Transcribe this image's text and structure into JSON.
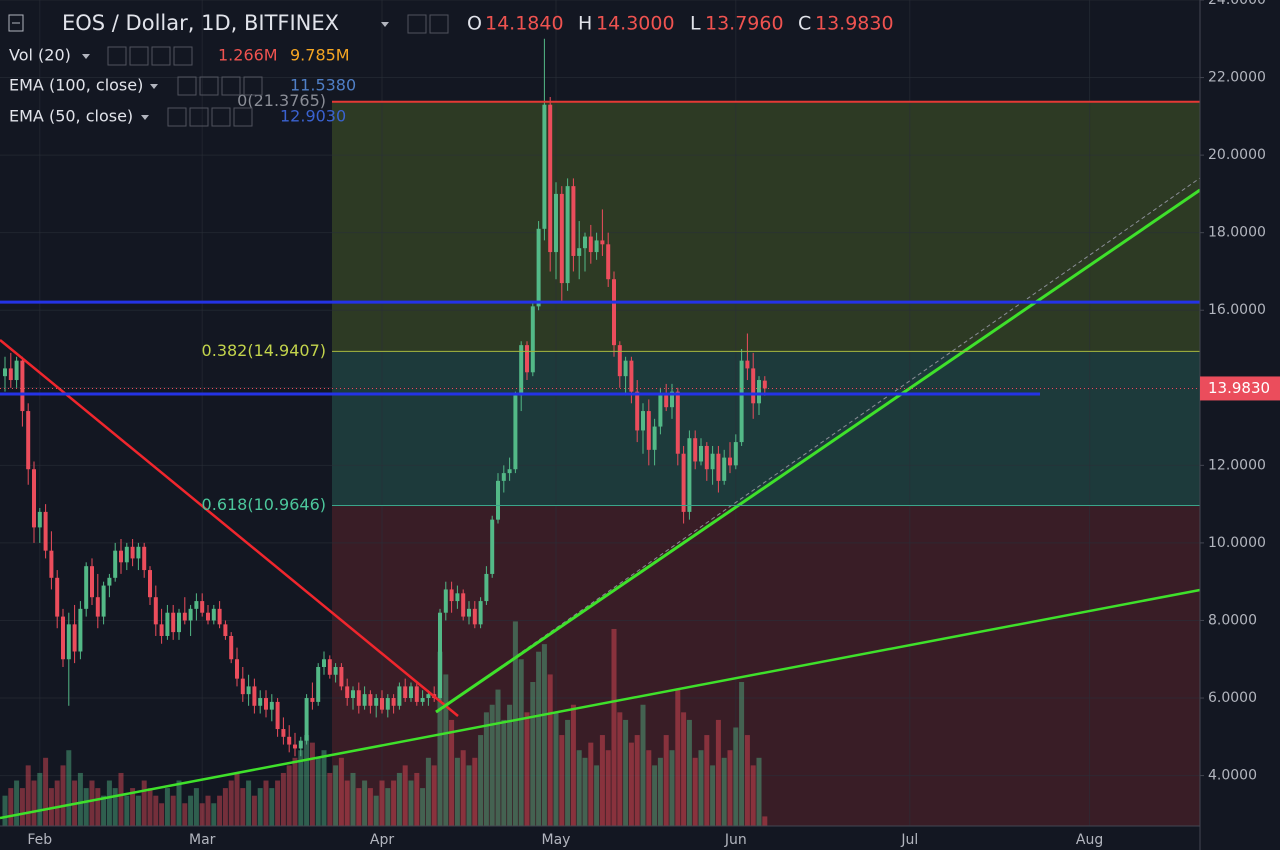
{
  "chart_data": {
    "type": "candlestick",
    "title": "EOS / Dollar, 1D, BITFINEX",
    "ohlc_legend": [
      {
        "name": "O",
        "value": 14.184,
        "label": "14.1840"
      },
      {
        "name": "H",
        "value": 14.3,
        "label": "14.3000"
      },
      {
        "name": "L",
        "value": 13.796,
        "label": "13.7960"
      },
      {
        "name": "C",
        "value": 13.983,
        "label": "13.9830"
      }
    ],
    "legend": [
      {
        "name": "Vol (20)",
        "values": [
          {
            "value": 1.266,
            "label": "1.266M",
            "color": "#ef5350"
          },
          {
            "value": 9.785,
            "label": "9.785M",
            "color": "#f5a623"
          }
        ]
      },
      {
        "name": "EMA (100, close)",
        "values": [
          {
            "value": 11.538,
            "label": "11.5380",
            "color": "#4f7fc6"
          }
        ]
      },
      {
        "name": "EMA (50, close)",
        "values": [
          {
            "value": 12.903,
            "label": "12.9030",
            "color": "#3a62d0"
          }
        ]
      }
    ],
    "categories": [
      null,
      null,
      null,
      null,
      null,
      null,
      "Feb",
      null,
      null,
      null,
      null,
      null,
      null,
      null,
      null,
      null,
      null,
      null,
      null,
      null,
      null,
      null,
      null,
      null,
      null,
      null,
      null,
      null,
      null,
      null,
      null,
      null,
      null,
      null,
      "Mar",
      null,
      null,
      null,
      null,
      null,
      null,
      null,
      null,
      null,
      null,
      null,
      null,
      null,
      null,
      null,
      null,
      null,
      null,
      null,
      null,
      null,
      null,
      null,
      null,
      null,
      null,
      null,
      null,
      null,
      null,
      "Apr",
      null,
      null,
      null,
      null,
      null,
      null,
      null,
      null,
      null,
      null,
      null,
      null,
      null,
      null,
      null,
      null,
      null,
      null,
      null,
      null,
      null,
      null,
      null,
      null,
      null,
      null,
      null,
      null,
      null,
      "May",
      null,
      null,
      null,
      null,
      null,
      null,
      null,
      null,
      null,
      null,
      null,
      null,
      null,
      null,
      null,
      null,
      null,
      null,
      null,
      null,
      null,
      null,
      null,
      null,
      null,
      null,
      null,
      null,
      null,
      null,
      "Jun",
      null,
      null,
      null,
      null,
      null,
      null,
      null,
      null,
      null,
      null,
      null,
      null,
      null,
      null,
      null,
      null,
      null,
      null,
      null,
      null,
      null,
      null,
      null,
      null,
      null,
      null,
      null,
      null,
      null,
      "Jul",
      null,
      null,
      null,
      null,
      null,
      null,
      null,
      null,
      null,
      null,
      null,
      null,
      null,
      null,
      null,
      null,
      null,
      null,
      null,
      null,
      null,
      null,
      null,
      null,
      null,
      null,
      null,
      null,
      null,
      null,
      "Aug",
      null,
      null,
      null,
      null,
      null,
      null,
      null,
      null,
      null,
      null,
      null,
      null,
      null,
      null,
      null,
      null,
      null,
      null
    ],
    "open": [
      14.3,
      14.5,
      14.2,
      14.7,
      13.4,
      11.9,
      10.4,
      10.8,
      9.8,
      9.1,
      8.1,
      7.0,
      7.9,
      7.2,
      8.3,
      9.4,
      8.6,
      8.1,
      8.9,
      9.1,
      9.8,
      9.5,
      9.9,
      9.6,
      9.9,
      9.3,
      8.6,
      7.9,
      7.6,
      8.2,
      7.7,
      8.2,
      8.0,
      8.3,
      8.5,
      8.2,
      8.0,
      8.3,
      7.9,
      7.6,
      7.0,
      6.5,
      6.1,
      6.3,
      5.8,
      6.0,
      5.7,
      5.9,
      5.2,
      5.0,
      4.8,
      4.7,
      4.9,
      6.0,
      5.9,
      6.8,
      7.0,
      6.6,
      6.8,
      6.3,
      6.0,
      6.2,
      5.8,
      6.1,
      5.8,
      6.0,
      5.7,
      6.0,
      5.8,
      6.3,
      6.0,
      6.3,
      5.9,
      6.0,
      6.1,
      6.0,
      8.2,
      8.8,
      8.5,
      8.7,
      8.1,
      8.3,
      7.9,
      8.5,
      9.2,
      10.6,
      11.6,
      11.8,
      11.9,
      13.8,
      15.1,
      14.4,
      16.1,
      18.1,
      21.3,
      17.5,
      19.0,
      16.7,
      19.2,
      17.4,
      17.6,
      17.9,
      17.5,
      17.8,
      17.7,
      16.8,
      15.1,
      14.3,
      14.7,
      13.9,
      12.9,
      13.4,
      12.4,
      13.0,
      13.8,
      13.5,
      13.9,
      12.3,
      10.8,
      12.7,
      12.1,
      12.5,
      11.9,
      12.3,
      11.6,
      12.2,
      12.0,
      12.6,
      14.7,
      14.5,
      13.6,
      14.184,
      null,
      null,
      null,
      null,
      null,
      null,
      null,
      null,
      null,
      null,
      null,
      null,
      null,
      null,
      null,
      null,
      null,
      null,
      null,
      null,
      null,
      null,
      null,
      null,
      null,
      null,
      null,
      null,
      null,
      null,
      null,
      null,
      null,
      null,
      null,
      null,
      null,
      null,
      null,
      null,
      null,
      null,
      null,
      null,
      null,
      null,
      null,
      null,
      null,
      null,
      null,
      null,
      null,
      null,
      null,
      null,
      null,
      null,
      null,
      null,
      null,
      null,
      null,
      null,
      null,
      null,
      null,
      null,
      null,
      null,
      null,
      null,
      null,
      null
    ],
    "high": [
      14.8,
      14.9,
      14.8,
      14.8,
      13.6,
      12.1,
      10.9,
      11.0,
      10.3,
      9.3,
      8.3,
      8.2,
      8.4,
      8.5,
      9.5,
      9.6,
      9.2,
      9.0,
      9.2,
      10.0,
      10.1,
      10.0,
      10.1,
      10.0,
      10.0,
      9.4,
      8.9,
      8.3,
      8.4,
      8.4,
      8.3,
      8.6,
      8.4,
      8.7,
      8.7,
      8.4,
      8.4,
      8.5,
      8.0,
      7.7,
      7.3,
      6.8,
      6.6,
      6.5,
      6.2,
      6.2,
      6.1,
      6.0,
      5.5,
      5.3,
      5.1,
      5.0,
      6.1,
      6.4,
      6.9,
      7.2,
      7.1,
      6.9,
      6.9,
      6.5,
      6.3,
      6.4,
      6.3,
      6.2,
      6.1,
      6.2,
      6.1,
      6.1,
      6.4,
      6.5,
      6.4,
      6.4,
      6.2,
      6.2,
      6.3,
      8.3,
      9.0,
      9.0,
      8.9,
      8.8,
      8.5,
      8.5,
      8.6,
      9.4,
      10.7,
      11.8,
      12.0,
      12.2,
      13.9,
      15.2,
      15.2,
      16.2,
      18.3,
      23.0,
      21.5,
      19.3,
      19.2,
      19.4,
      19.4,
      18.3,
      18.0,
      18.2,
      18.0,
      18.6,
      18.0,
      17.0,
      15.2,
      14.8,
      14.8,
      14.2,
      13.6,
      13.7,
      13.2,
      14.0,
      14.1,
      14.1,
      14.0,
      12.5,
      12.9,
      12.9,
      12.7,
      12.6,
      12.5,
      12.5,
      12.4,
      12.6,
      12.8,
      15.0,
      15.4,
      14.9,
      14.3,
      14.3,
      null,
      null,
      null,
      null,
      null,
      null,
      null,
      null,
      null,
      null,
      null,
      null,
      null,
      null,
      null,
      null,
      null,
      null,
      null,
      null,
      null,
      null,
      null,
      null,
      null,
      null,
      null,
      null,
      null,
      null,
      null,
      null,
      null,
      null,
      null,
      null,
      null,
      null,
      null,
      null,
      null,
      null,
      null,
      null,
      null,
      null,
      null,
      null,
      null,
      null,
      null,
      null,
      null,
      null,
      null,
      null,
      null,
      null,
      null,
      null,
      null,
      null,
      null,
      null,
      null,
      null,
      null,
      null,
      null,
      null,
      null,
      null,
      null,
      null
    ],
    "low": [
      13.9,
      14.0,
      14.0,
      13.0,
      11.5,
      10.0,
      10.0,
      9.6,
      8.8,
      7.8,
      6.8,
      5.8,
      6.9,
      7.0,
      8.1,
      8.4,
      7.8,
      7.9,
      8.6,
      9.0,
      9.2,
      9.3,
      9.4,
      9.3,
      9.1,
      8.4,
      7.6,
      7.4,
      7.5,
      7.5,
      7.5,
      7.9,
      7.6,
      8.0,
      8.1,
      7.9,
      7.9,
      7.8,
      7.5,
      6.9,
      6.3,
      5.9,
      5.8,
      5.6,
      5.6,
      5.5,
      5.4,
      5.0,
      4.8,
      4.6,
      4.5,
      4.5,
      4.8,
      5.7,
      5.8,
      6.6,
      6.5,
      6.4,
      6.2,
      5.8,
      5.7,
      5.6,
      5.7,
      5.6,
      5.5,
      5.6,
      5.5,
      5.6,
      5.7,
      5.9,
      5.9,
      5.8,
      5.8,
      5.8,
      5.9,
      5.9,
      8.0,
      8.2,
      8.3,
      8.0,
      7.9,
      7.8,
      7.8,
      8.4,
      9.1,
      10.5,
      11.3,
      11.6,
      11.8,
      13.4,
      14.2,
      14.3,
      16.0,
      17.8,
      17.0,
      16.8,
      16.2,
      16.5,
      17.0,
      16.8,
      17.0,
      17.2,
      17.3,
      17.4,
      16.6,
      14.8,
      14.0,
      13.8,
      13.6,
      12.6,
      12.3,
      12.0,
      12.0,
      12.8,
      13.4,
      13.2,
      12.0,
      10.5,
      10.6,
      11.9,
      12.0,
      11.6,
      11.5,
      11.3,
      11.5,
      11.8,
      11.9,
      12.5,
      14.2,
      13.2,
      13.3,
      13.796,
      null,
      null,
      null,
      null,
      null,
      null,
      null,
      null,
      null,
      null,
      null,
      null,
      null,
      null,
      null,
      null,
      null,
      null,
      null,
      null,
      null,
      null,
      null,
      null,
      null,
      null,
      null,
      null,
      null,
      null,
      null,
      null,
      null,
      null,
      null,
      null,
      null,
      null,
      null,
      null,
      null,
      null,
      null,
      null,
      null,
      null,
      null,
      null,
      null,
      null,
      null,
      null,
      null,
      null,
      null,
      null,
      null,
      null,
      null,
      null,
      null,
      null,
      null,
      null,
      null,
      null,
      null,
      null,
      null,
      null,
      null,
      null,
      null,
      null
    ],
    "close": [
      14.5,
      14.2,
      14.7,
      13.4,
      11.9,
      10.4,
      10.8,
      9.8,
      9.1,
      8.1,
      7.0,
      7.9,
      7.2,
      8.3,
      9.4,
      8.6,
      8.1,
      8.9,
      9.1,
      9.8,
      9.5,
      9.9,
      9.6,
      9.9,
      9.3,
      8.6,
      7.9,
      7.6,
      8.2,
      7.7,
      8.2,
      8.0,
      8.3,
      8.5,
      8.2,
      8.0,
      8.3,
      7.9,
      7.6,
      7.0,
      6.5,
      6.1,
      6.3,
      5.8,
      6.0,
      5.7,
      5.9,
      5.2,
      5.0,
      4.8,
      4.7,
      4.9,
      6.0,
      5.9,
      6.8,
      7.0,
      6.6,
      6.8,
      6.3,
      6.0,
      6.2,
      5.8,
      6.1,
      5.8,
      6.0,
      5.7,
      6.0,
      5.8,
      6.3,
      6.0,
      6.3,
      5.9,
      6.0,
      6.1,
      6.0,
      8.2,
      8.8,
      8.5,
      8.7,
      8.1,
      8.3,
      7.9,
      8.5,
      9.2,
      10.6,
      11.6,
      11.8,
      11.9,
      13.8,
      15.1,
      14.4,
      16.1,
      18.1,
      21.3,
      17.5,
      19.0,
      16.7,
      19.2,
      17.4,
      17.6,
      17.9,
      17.5,
      17.8,
      17.7,
      16.8,
      15.1,
      14.3,
      14.7,
      13.9,
      12.9,
      13.4,
      12.4,
      13.0,
      13.8,
      13.5,
      13.9,
      12.3,
      10.8,
      12.7,
      12.1,
      12.5,
      11.9,
      12.3,
      11.6,
      12.2,
      12.0,
      12.6,
      14.7,
      14.5,
      13.6,
      14.2,
      13.983,
      null,
      null,
      null,
      null,
      null,
      null,
      null,
      null,
      null,
      null,
      null,
      null,
      null,
      null,
      null,
      null,
      null,
      null,
      null,
      null,
      null,
      null,
      null,
      null,
      null,
      null,
      null,
      null,
      null,
      null,
      null,
      null,
      null,
      null,
      null,
      null,
      null,
      null,
      null,
      null,
      null,
      null,
      null,
      null,
      null,
      null,
      null,
      null,
      null,
      null,
      null,
      null,
      null,
      null,
      null,
      null,
      null,
      null,
      null,
      null,
      null,
      null,
      null,
      null,
      null,
      null,
      null,
      null,
      null,
      null,
      null,
      null,
      null,
      null
    ],
    "volume": [
      4,
      5,
      6,
      5,
      8,
      6,
      7,
      9,
      5,
      6,
      8,
      10,
      6,
      7,
      5,
      6,
      5,
      4,
      6,
      5,
      7,
      4,
      5,
      4,
      6,
      5,
      4,
      3,
      5,
      4,
      6,
      3,
      4,
      5,
      3,
      4,
      3,
      4,
      5,
      6,
      7,
      5,
      6,
      4,
      5,
      6,
      5,
      6,
      7,
      8,
      9,
      10,
      12,
      11,
      9,
      10,
      7,
      8,
      9,
      6,
      7,
      5,
      6,
      5,
      4,
      6,
      5,
      6,
      7,
      8,
      6,
      7,
      5,
      9,
      8,
      23,
      20,
      14,
      9,
      10,
      8,
      9,
      12,
      15,
      16,
      18,
      14,
      16,
      27,
      22,
      15,
      19,
      23,
      24,
      20,
      15,
      12,
      14,
      16,
      10,
      9,
      11,
      8,
      12,
      10,
      26,
      15,
      14,
      11,
      12,
      16,
      10,
      8,
      9,
      12,
      10,
      18,
      15,
      14,
      9,
      10,
      12,
      8,
      14,
      9,
      10,
      13,
      19,
      12,
      8,
      9,
      1.266,
      null,
      null,
      null,
      null,
      null,
      null,
      null,
      null,
      null,
      null,
      null,
      null,
      null,
      null,
      null,
      null,
      null,
      null,
      null,
      null,
      null,
      null,
      null,
      null,
      null,
      null,
      null,
      null,
      null,
      null,
      null,
      null,
      null,
      null,
      null,
      null,
      null,
      null,
      null,
      null,
      null,
      null,
      null,
      null,
      null,
      null,
      null,
      null,
      null,
      null,
      null,
      null,
      null,
      null,
      null,
      null,
      null,
      null,
      null,
      null,
      null,
      null,
      null,
      null,
      null,
      null,
      null,
      null,
      null,
      null,
      null,
      null,
      null,
      null
    ],
    "up_color": "#53b987",
    "down_color": "#eb4d5c",
    "ylim": [
      2.7,
      24
    ],
    "yticks": [
      {
        "value": 4,
        "label": "4.0000"
      },
      {
        "value": 6,
        "label": "6.0000"
      },
      {
        "value": 8,
        "label": "8.0000"
      },
      {
        "value": 10,
        "label": "10.0000"
      },
      {
        "value": 12,
        "label": "12.0000"
      },
      {
        "value": 14,
        "label": "14.0000"
      },
      {
        "value": 16,
        "label": "16.0000"
      },
      {
        "value": 18,
        "label": "18.0000"
      },
      {
        "value": 20,
        "label": "20.0000"
      },
      {
        "value": 22,
        "label": "22.0000"
      },
      {
        "value": 24,
        "label": "24.0000"
      }
    ],
    "y2lim": [
      0,
      109
    ],
    "grid": true,
    "last_price": {
      "value": 13.983,
      "label": "13.9830"
    },
    "fib_levels": [
      {
        "value": 21.3765,
        "label": "0(21.3765)",
        "color": "#e53935",
        "text_color": "#8a8d96",
        "zone": "#2d3a24"
      },
      {
        "value": 14.9407,
        "label": "0.382(14.9407)",
        "color": "#a8b83e",
        "text_color": "#c3d44c",
        "zone": "#1d3a3b"
      },
      {
        "value": 10.9646,
        "label": "0.618(10.9646)",
        "color": "#3aa58a",
        "text_color": "#4cc79c",
        "zone": "#391d26"
      }
    ],
    "horizontal_lines": [
      {
        "value": 16.21,
        "color": "#2433e6"
      },
      {
        "value": 13.84,
        "color": "#2433e6"
      }
    ]
  }
}
